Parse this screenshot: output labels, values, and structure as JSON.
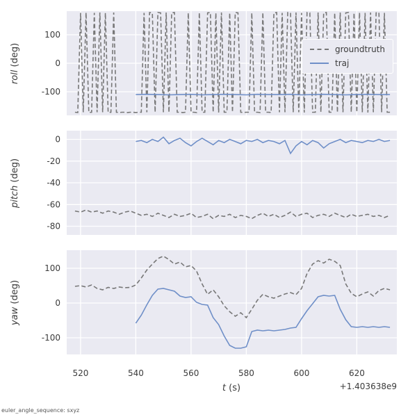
{
  "footnote": "euler_angle_sequence: sxyz",
  "chart_data": {
    "type": "line",
    "title": "",
    "xlabel_var": "t",
    "xlabel_unit": " (s)",
    "x_offset_text": "+1.403638e9",
    "xlim": [
      515,
      634.5
    ],
    "xticks": [
      520,
      540,
      560,
      580,
      600,
      620
    ],
    "grid": true,
    "legend_position": "upper right of roll subplot",
    "legend": [
      {
        "label": "groundtruth",
        "series": "groundtruth",
        "style": "dashed"
      },
      {
        "label": "traj",
        "series": "traj",
        "style": "solid"
      }
    ],
    "colors": {
      "groundtruth": "#777777",
      "traj": "#6f8fc8",
      "axes_bg": "#eaeaf2",
      "grid": "#ffffff",
      "text": "#3b3b3b"
    },
    "subplots": [
      {
        "ylabel_var": "roll",
        "ylabel_unit": " (deg)",
        "ylim": [
          -183,
          183
        ],
        "yticks": [
          -100,
          0,
          100
        ],
        "series": [
          {
            "name": "groundtruth",
            "dashed": true,
            "t0": 518,
            "dt": 1,
            "values": [
              -172,
              -173,
              177,
              -172,
              178,
              -173,
              -172,
              177,
              -172,
              178,
              -172,
              177,
              -173,
              -172,
              178,
              -172,
              -173,
              -172,
              -172,
              -173,
              -172,
              -172,
              -173,
              -172,
              -172,
              177,
              -172,
              178,
              177,
              -172,
              178,
              177,
              -172,
              178,
              -173,
              177,
              178,
              -172,
              -172,
              -173,
              -172,
              177,
              -172,
              -172,
              -173,
              178,
              -172,
              -172,
              177,
              178,
              -172,
              177,
              -173,
              178,
              -172,
              -172,
              177,
              -172,
              178,
              177,
              -172,
              -173,
              -172,
              -172,
              177,
              -172,
              -172,
              -173,
              178,
              -172,
              -172,
              -173,
              177,
              178,
              -172,
              177,
              -172,
              178,
              177,
              -172,
              178,
              -172,
              177,
              -173,
              178,
              177,
              -172,
              -172,
              178,
              -172,
              177,
              178,
              -172,
              -172,
              177,
              -173,
              178,
              -172,
              177,
              178,
              -172,
              177,
              -172,
              178,
              -172,
              177,
              -173,
              178,
              -172,
              177,
              178,
              -172,
              177,
              -172,
              -172
            ]
          },
          {
            "name": "traj",
            "dashed": false,
            "t0": 540,
            "dt": 4,
            "values": [
              -110,
              -109,
              -110,
              -111,
              -110,
              -109,
              -111,
              -110,
              -109,
              -110,
              -111,
              -109,
              -110,
              -110,
              -109,
              -111,
              -110,
              -109,
              -110,
              -111,
              -110,
              -109,
              -110,
              -110
            ]
          }
        ]
      },
      {
        "ylabel_var": "pitch",
        "ylabel_unit": " (deg)",
        "ylim": [
          -88,
          8
        ],
        "yticks": [
          0,
          -20,
          -40,
          -60,
          -80
        ],
        "series": [
          {
            "name": "groundtruth",
            "dashed": true,
            "t0": 518,
            "dt": 2,
            "values": [
              -66,
              -67,
              -65,
              -67,
              -66,
              -68,
              -66,
              -67,
              -69,
              -67,
              -66,
              -68,
              -70,
              -69,
              -71,
              -68,
              -70,
              -72,
              -69,
              -71,
              -70,
              -68,
              -72,
              -71,
              -69,
              -73,
              -70,
              -71,
              -69,
              -72,
              -70,
              -71,
              -73,
              -70,
              -68,
              -71,
              -69,
              -72,
              -70,
              -67,
              -71,
              -69,
              -68,
              -72,
              -70,
              -69,
              -71,
              -68,
              -70,
              -72,
              -69,
              -71,
              -70,
              -69,
              -71,
              -70,
              -72,
              -70
            ]
          },
          {
            "name": "traj",
            "dashed": false,
            "t0": 540,
            "dt": 2,
            "values": [
              -2,
              -1,
              -3,
              0,
              -2,
              2,
              -4,
              -1,
              1,
              -3,
              -6,
              -2,
              1,
              -2,
              -5,
              -1,
              -3,
              0,
              -2,
              -4,
              -1,
              -2,
              0,
              -3,
              -1,
              -2,
              -4,
              -1,
              -13,
              -6,
              -2,
              -5,
              -1,
              -3,
              -8,
              -4,
              -2,
              0,
              -3,
              -1,
              -2,
              -3,
              -1,
              -2,
              0,
              -2,
              -1
            ]
          }
        ]
      },
      {
        "ylabel_var": "yaw",
        "ylabel_unit": " (deg)",
        "ylim": [
          -148,
          152
        ],
        "yticks": [
          -100,
          0,
          100
        ],
        "series": [
          {
            "name": "groundtruth",
            "dashed": true,
            "t0": 518,
            "dt": 2,
            "values": [
              48,
              50,
              46,
              52,
              42,
              38,
              45,
              42,
              46,
              44,
              45,
              52,
              72,
              95,
              112,
              128,
              135,
              125,
              112,
              118,
              104,
              108,
              92,
              55,
              25,
              38,
              18,
              -8,
              -25,
              -38,
              -28,
              -42,
              -18,
              8,
              25,
              18,
              14,
              20,
              26,
              30,
              24,
              42,
              85,
              112,
              122,
              115,
              126,
              120,
              108,
              55,
              28,
              18,
              26,
              32,
              20,
              36,
              42,
              38
            ]
          },
          {
            "name": "traj",
            "dashed": false,
            "t0": 540,
            "dt": 2,
            "values": [
              -58,
              -35,
              -5,
              22,
              40,
              42,
              38,
              34,
              20,
              16,
              18,
              2,
              -4,
              -6,
              -42,
              -62,
              -95,
              -122,
              -130,
              -130,
              -126,
              -82,
              -78,
              -80,
              -78,
              -80,
              -78,
              -76,
              -72,
              -70,
              -45,
              -22,
              -2,
              18,
              22,
              20,
              22,
              -18,
              -48,
              -68,
              -70,
              -68,
              -70,
              -68,
              -70,
              -68,
              -70
            ]
          }
        ]
      }
    ]
  }
}
